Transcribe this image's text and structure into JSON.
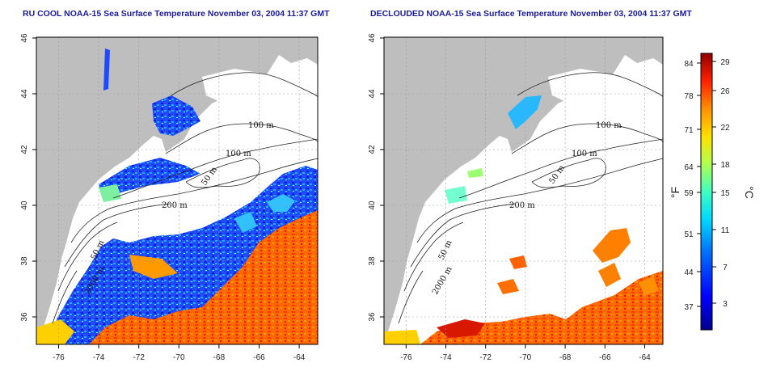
{
  "left_title": "RU COOL NOAA-15 Sea Surface Temperature November 03, 2004 11:37 GMT",
  "right_title": "DECLOUDED NOAA-15 Sea Surface Temperature November 03, 2004 11:37 GMT",
  "lon_ticks": [
    "-76",
    "-74",
    "-72",
    "-70",
    "-68",
    "-66",
    "-64"
  ],
  "lat_ticks": [
    "46",
    "44",
    "42",
    "40",
    "38",
    "36"
  ],
  "contour_labels": {
    "m100a": "100 m",
    "m100b": "100 m",
    "m50a": "50 m",
    "m200": "200 m",
    "m50b": "50 m",
    "m2000": "2000 m"
  },
  "colorbar": {
    "fahrenheit_label": "°F",
    "celsius_label": "°C",
    "fahrenheit_ticks": [
      "84",
      "78",
      "71",
      "64",
      "59",
      "51",
      "44",
      "37"
    ],
    "celsius_ticks": [
      "29",
      "26",
      "22",
      "18",
      "15",
      "11",
      "7",
      "3"
    ]
  },
  "colors": {
    "land": "#bebebe",
    "cloud": "#ffffff",
    "title": "#1a1a9c"
  }
}
